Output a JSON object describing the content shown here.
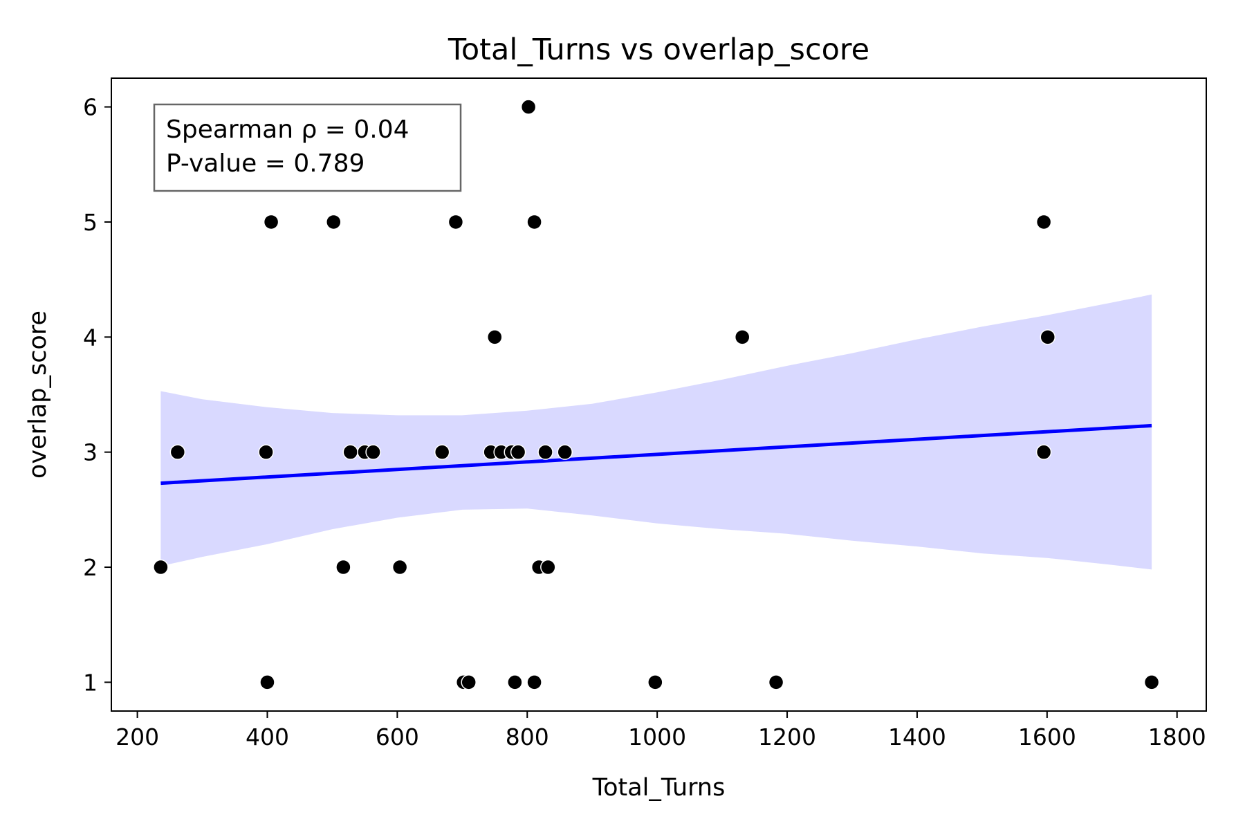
{
  "chart_data": {
    "type": "scatter",
    "title": "Total_Turns vs overlap_score",
    "xlabel": "Total_Turns",
    "ylabel": "overlap_score",
    "xlim": [
      160,
      1845
    ],
    "ylim": [
      0.75,
      6.25
    ],
    "xticks": [
      200,
      400,
      600,
      800,
      1000,
      1200,
      1400,
      1600,
      1800
    ],
    "yticks": [
      1,
      2,
      3,
      4,
      5,
      6
    ],
    "grid": false,
    "legend": "none",
    "colors": {
      "points": "#000000",
      "regression_line": "#0000ff",
      "confidence_band": "#d9d9ff",
      "annotation_border": "#666666"
    },
    "annotation": {
      "position": "top-left",
      "lines": [
        "Spearman ρ = 0.04",
        "P-value = 0.789"
      ]
    },
    "regression": {
      "x": [
        236,
        1761
      ],
      "y": [
        2.73,
        3.23
      ]
    },
    "confidence_band": {
      "x": [
        236,
        300,
        400,
        500,
        600,
        700,
        800,
        900,
        1000,
        1100,
        1200,
        1300,
        1400,
        1500,
        1600,
        1700,
        1761
      ],
      "upper": [
        3.53,
        3.46,
        3.39,
        3.34,
        3.32,
        3.32,
        3.36,
        3.42,
        3.52,
        3.63,
        3.75,
        3.86,
        3.98,
        4.09,
        4.19,
        4.3,
        4.37
      ],
      "lower": [
        2.01,
        2.09,
        2.2,
        2.33,
        2.43,
        2.5,
        2.51,
        2.45,
        2.38,
        2.33,
        2.29,
        2.23,
        2.18,
        2.12,
        2.08,
        2.02,
        1.98
      ]
    },
    "points": [
      {
        "x": 236,
        "y": 2
      },
      {
        "x": 262,
        "y": 3
      },
      {
        "x": 398,
        "y": 3
      },
      {
        "x": 400,
        "y": 1
      },
      {
        "x": 406,
        "y": 5
      },
      {
        "x": 502,
        "y": 5
      },
      {
        "x": 517,
        "y": 2
      },
      {
        "x": 528,
        "y": 3
      },
      {
        "x": 550,
        "y": 3
      },
      {
        "x": 563,
        "y": 3
      },
      {
        "x": 604,
        "y": 2
      },
      {
        "x": 669,
        "y": 3
      },
      {
        "x": 690,
        "y": 5
      },
      {
        "x": 702,
        "y": 1
      },
      {
        "x": 710,
        "y": 1
      },
      {
        "x": 744,
        "y": 3
      },
      {
        "x": 750,
        "y": 4
      },
      {
        "x": 760,
        "y": 3
      },
      {
        "x": 776,
        "y": 3
      },
      {
        "x": 781,
        "y": 1
      },
      {
        "x": 786,
        "y": 3
      },
      {
        "x": 802,
        "y": 6
      },
      {
        "x": 811,
        "y": 1
      },
      {
        "x": 811,
        "y": 5
      },
      {
        "x": 818,
        "y": 2
      },
      {
        "x": 828,
        "y": 3
      },
      {
        "x": 832,
        "y": 2
      },
      {
        "x": 858,
        "y": 3
      },
      {
        "x": 997,
        "y": 1
      },
      {
        "x": 1131,
        "y": 4
      },
      {
        "x": 1183,
        "y": 1
      },
      {
        "x": 1595,
        "y": 5
      },
      {
        "x": 1595,
        "y": 3
      },
      {
        "x": 1601,
        "y": 4
      },
      {
        "x": 1761,
        "y": 1
      }
    ]
  }
}
